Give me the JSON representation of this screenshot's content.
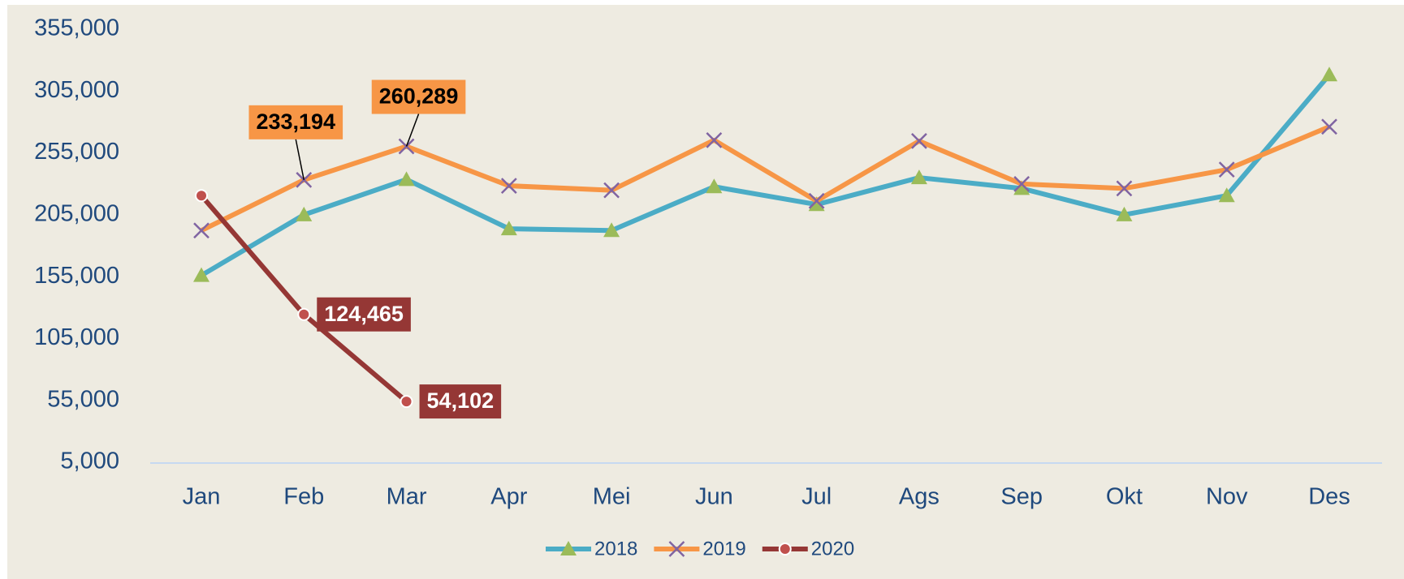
{
  "chart_data": {
    "type": "line",
    "categories": [
      "Jan",
      "Feb",
      "Mar",
      "Apr",
      "Mei",
      "Jun",
      "Jul",
      "Ags",
      "Sep",
      "Okt",
      "Nov",
      "Des"
    ],
    "series": [
      {
        "name": "2018",
        "color": "#4bacc6",
        "marker": "triangle",
        "marker_color": "#9bbb59",
        "values": [
          156000,
          205000,
          233500,
          193700,
          192300,
          227700,
          213300,
          235000,
          226300,
          205000,
          220500,
          318100
        ]
      },
      {
        "name": "2019",
        "color": "#f79646",
        "marker": "x",
        "marker_color": "#8064a2",
        "values": [
          192300,
          233194,
          260289,
          228450,
          224800,
          265300,
          216200,
          264600,
          229900,
          226300,
          241500,
          276200
        ],
        "value_labels": [
          null,
          "233,194",
          "260,289",
          null,
          null,
          null,
          null,
          null,
          null,
          null,
          null,
          null
        ]
      },
      {
        "name": "2020",
        "color": "#953735",
        "marker": "circle",
        "marker_color": "#c0504d",
        "values": [
          220500,
          124465,
          54102,
          null,
          null,
          null,
          null,
          null,
          null,
          null,
          null,
          null
        ],
        "value_labels": [
          null,
          "124,465",
          "54,102",
          null,
          null,
          null,
          null,
          null,
          null,
          null,
          null,
          null
        ]
      }
    ],
    "ylim": [
      5000,
      355000
    ],
    "yticks": [
      {
        "value": 5000,
        "label": "5,000"
      },
      {
        "value": 55000,
        "label": "55,000"
      },
      {
        "value": 105000,
        "label": "105,000"
      },
      {
        "value": 155000,
        "label": "155,000"
      },
      {
        "value": 205000,
        "label": "205,000"
      },
      {
        "value": 255000,
        "label": "255,000"
      },
      {
        "value": 305000,
        "label": "305,000"
      },
      {
        "value": 355000,
        "label": "355,000"
      }
    ],
    "grid": false,
    "legend": "bottom"
  }
}
